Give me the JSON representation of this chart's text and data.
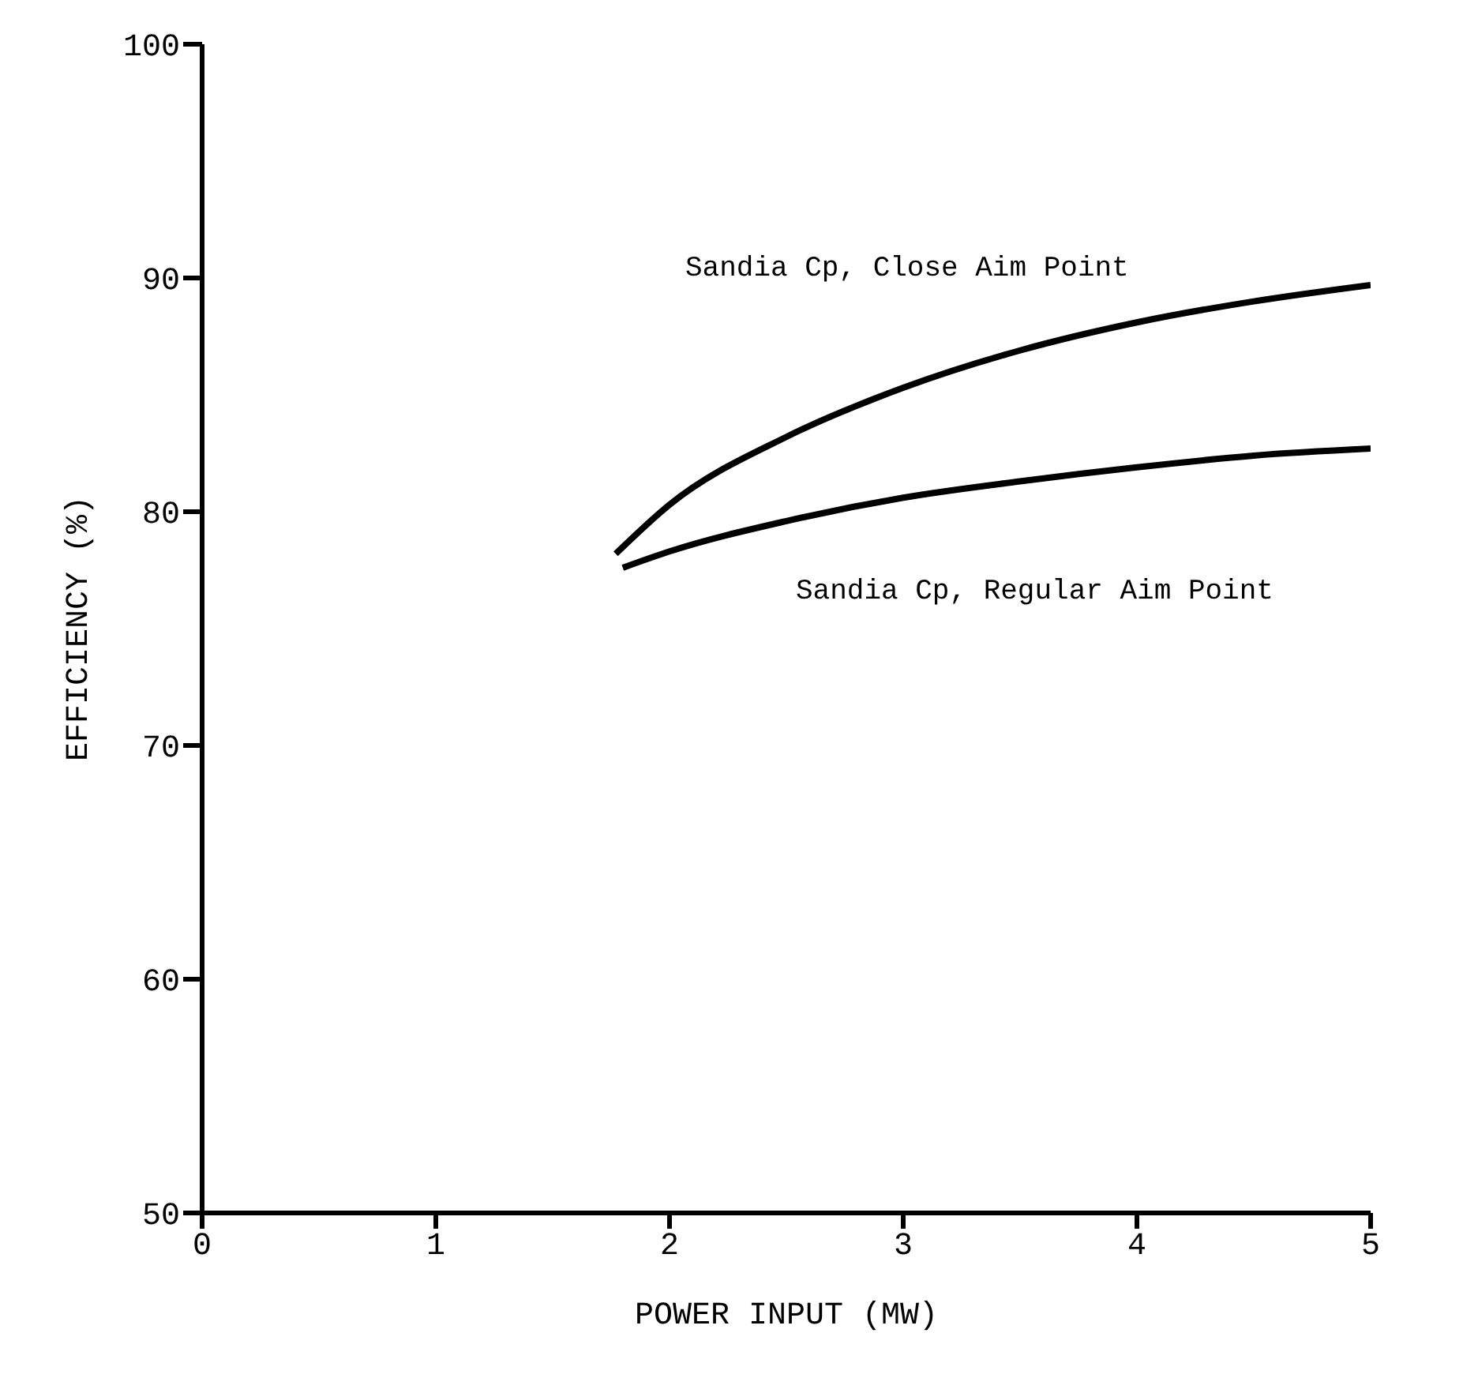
{
  "chart_data": {
    "type": "line",
    "xlabel": "POWER INPUT (MW)",
    "ylabel": "EFFICIENCY (%)",
    "xlim": [
      0,
      5
    ],
    "xticks": [
      0,
      1,
      2,
      3,
      4,
      5
    ],
    "ylim": [
      50,
      100
    ],
    "yticks": [
      50,
      60,
      70,
      80,
      90,
      100
    ],
    "grid": false,
    "legend": false,
    "marker": "none",
    "line_style": "solid",
    "series": [
      {
        "name": "Sandia Cp, Close Aim Point",
        "color": "#000000",
        "x": [
          1.77,
          2,
          2.5,
          3,
          3.5,
          4,
          4.5,
          5
        ],
        "values": [
          78.2,
          80.3,
          83.2,
          85.3,
          86.9,
          88.1,
          89,
          89.7
        ]
      },
      {
        "name": "Sandia Cp, Regular Aim Point",
        "color": "#000000",
        "x": [
          1.8,
          2,
          2.5,
          3,
          3.5,
          4,
          4.5,
          5
        ],
        "values": [
          77.6,
          78.3,
          79.6,
          80.6,
          81.3,
          81.9,
          82.4,
          82.7
        ]
      }
    ]
  }
}
